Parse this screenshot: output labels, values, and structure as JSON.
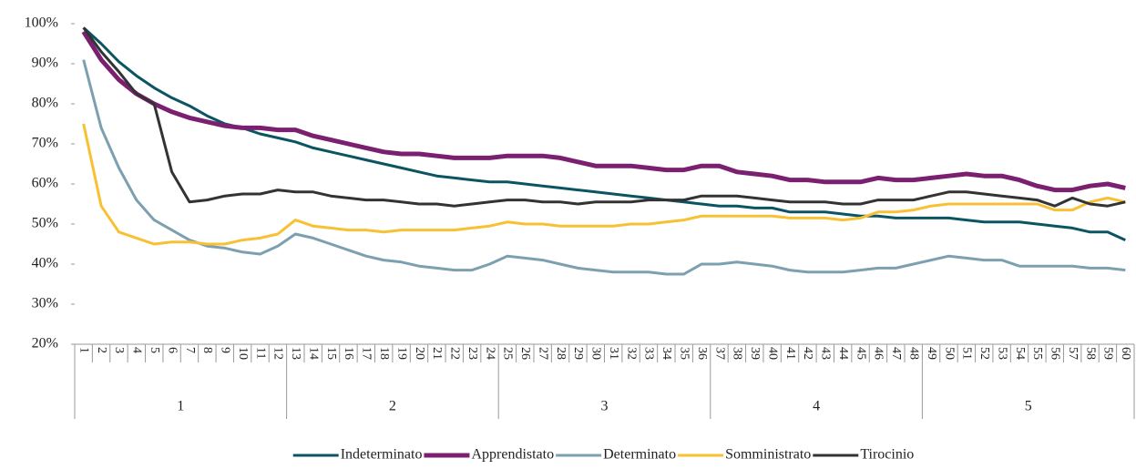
{
  "chart_data": {
    "type": "line",
    "categories": [
      "1",
      "2",
      "3",
      "4",
      "5",
      "6",
      "7",
      "8",
      "9",
      "10",
      "11",
      "12",
      "13",
      "14",
      "15",
      "16",
      "17",
      "18",
      "19",
      "20",
      "21",
      "22",
      "23",
      "24",
      "25",
      "26",
      "27",
      "28",
      "29",
      "30",
      "31",
      "32",
      "33",
      "34",
      "35",
      "36",
      "37",
      "38",
      "39",
      "40",
      "41",
      "42",
      "43",
      "44",
      "45",
      "46",
      "47",
      "48",
      "49",
      "50",
      "51",
      "52",
      "53",
      "54",
      "55",
      "56",
      "57",
      "58",
      "59",
      "60"
    ],
    "x_groups": [
      "1",
      "2",
      "3",
      "4",
      "5"
    ],
    "ylim": [
      20,
      100
    ],
    "yticks": [
      {
        "value": 20,
        "label": "20%"
      },
      {
        "value": 30,
        "label": "30%"
      },
      {
        "value": 40,
        "label": "40%"
      },
      {
        "value": 50,
        "label": "50%"
      },
      {
        "value": 60,
        "label": "60%"
      },
      {
        "value": 70,
        "label": "70%"
      },
      {
        "value": 80,
        "label": "80%"
      },
      {
        "value": 90,
        "label": "90%"
      },
      {
        "value": 100,
        "label": "100%"
      }
    ],
    "grid": false,
    "legend": "bottom",
    "series": [
      {
        "name": "Indeterminato",
        "color": "#0b5563",
        "width": 3,
        "values": [
          99,
          95,
          90.5,
          87,
          84,
          81.5,
          79.5,
          77,
          75,
          74,
          72.5,
          71.5,
          70.5,
          69,
          68,
          67,
          66,
          65,
          64,
          63,
          62,
          61.5,
          61,
          60.5,
          60.5,
          60,
          59.5,
          59,
          58.5,
          58,
          57.5,
          57,
          56.5,
          56,
          55.5,
          55,
          54.5,
          54.5,
          54,
          54,
          53,
          53,
          53,
          52.5,
          52,
          52,
          51.5,
          51.5,
          51.5,
          51.5,
          51,
          50.5,
          50.5,
          50.5,
          50,
          49.5,
          49,
          48,
          48,
          46
        ]
      },
      {
        "name": "Apprendistato",
        "color": "#7b2070",
        "width": 5,
        "values": [
          98,
          91,
          86,
          82.5,
          80,
          78,
          76.5,
          75.5,
          74.5,
          74,
          74,
          73.5,
          73.5,
          72,
          71,
          70,
          69,
          68,
          67.5,
          67.5,
          67,
          66.5,
          66.5,
          66.5,
          67,
          67,
          67,
          66.5,
          65.5,
          64.5,
          64.5,
          64.5,
          64,
          63.5,
          63.5,
          64.5,
          64.5,
          63,
          62.5,
          62,
          61,
          61,
          60.5,
          60.5,
          60.5,
          61.5,
          61,
          61,
          61.5,
          62,
          62.5,
          62,
          62,
          61,
          59.5,
          58.5,
          58.5,
          59.5,
          60,
          59
        ]
      },
      {
        "name": "Determinato",
        "color": "#7ca0b0",
        "width": 3,
        "values": [
          91,
          74,
          64,
          56,
          51,
          48.5,
          46,
          44.5,
          44,
          43,
          42.5,
          44.5,
          47.5,
          46.5,
          45,
          43.5,
          42,
          41,
          40.5,
          39.5,
          39,
          38.5,
          38.5,
          40,
          42,
          41.5,
          41,
          40,
          39,
          38.5,
          38,
          38,
          38,
          37.5,
          37.5,
          40,
          40,
          40.5,
          40,
          39.5,
          38.5,
          38,
          38,
          38,
          38.5,
          39,
          39,
          40,
          41,
          42,
          41.5,
          41,
          41,
          39.5,
          39.5,
          39.5,
          39.5,
          39,
          39,
          38.5
        ]
      },
      {
        "name": "Somministrato",
        "color": "#f8c133",
        "width": 3,
        "values": [
          75,
          54.5,
          48,
          46.5,
          45,
          45.5,
          45.5,
          45,
          45,
          46,
          46.5,
          47.5,
          51,
          49.5,
          49,
          48.5,
          48.5,
          48,
          48.5,
          48.5,
          48.5,
          48.5,
          49,
          49.5,
          50.5,
          50,
          50,
          49.5,
          49.5,
          49.5,
          49.5,
          50,
          50,
          50.5,
          51,
          52,
          52,
          52,
          52,
          52,
          51.5,
          51.5,
          51.5,
          51,
          51.5,
          53,
          53,
          53.5,
          54.5,
          55,
          55,
          55,
          55,
          55,
          55,
          53.5,
          53.5,
          55.5,
          56.5,
          55.5
        ]
      },
      {
        "name": "Tirocinio",
        "color": "#333333",
        "width": 3,
        "values": [
          99,
          93,
          88,
          82.5,
          80,
          63,
          55.5,
          56,
          57,
          57.5,
          57.5,
          58.5,
          58,
          58,
          57,
          56.5,
          56,
          56,
          55.5,
          55,
          55,
          54.5,
          55,
          55.5,
          56,
          56,
          55.5,
          55.5,
          55,
          55.5,
          55.5,
          55.5,
          56,
          56,
          56,
          57,
          57,
          57,
          56.5,
          56,
          55.5,
          55.5,
          55.5,
          55,
          55,
          56,
          56,
          56,
          57,
          58,
          58,
          57.5,
          57,
          56.5,
          56,
          54.5,
          56.5,
          55,
          54.5,
          55.5
        ]
      }
    ]
  }
}
